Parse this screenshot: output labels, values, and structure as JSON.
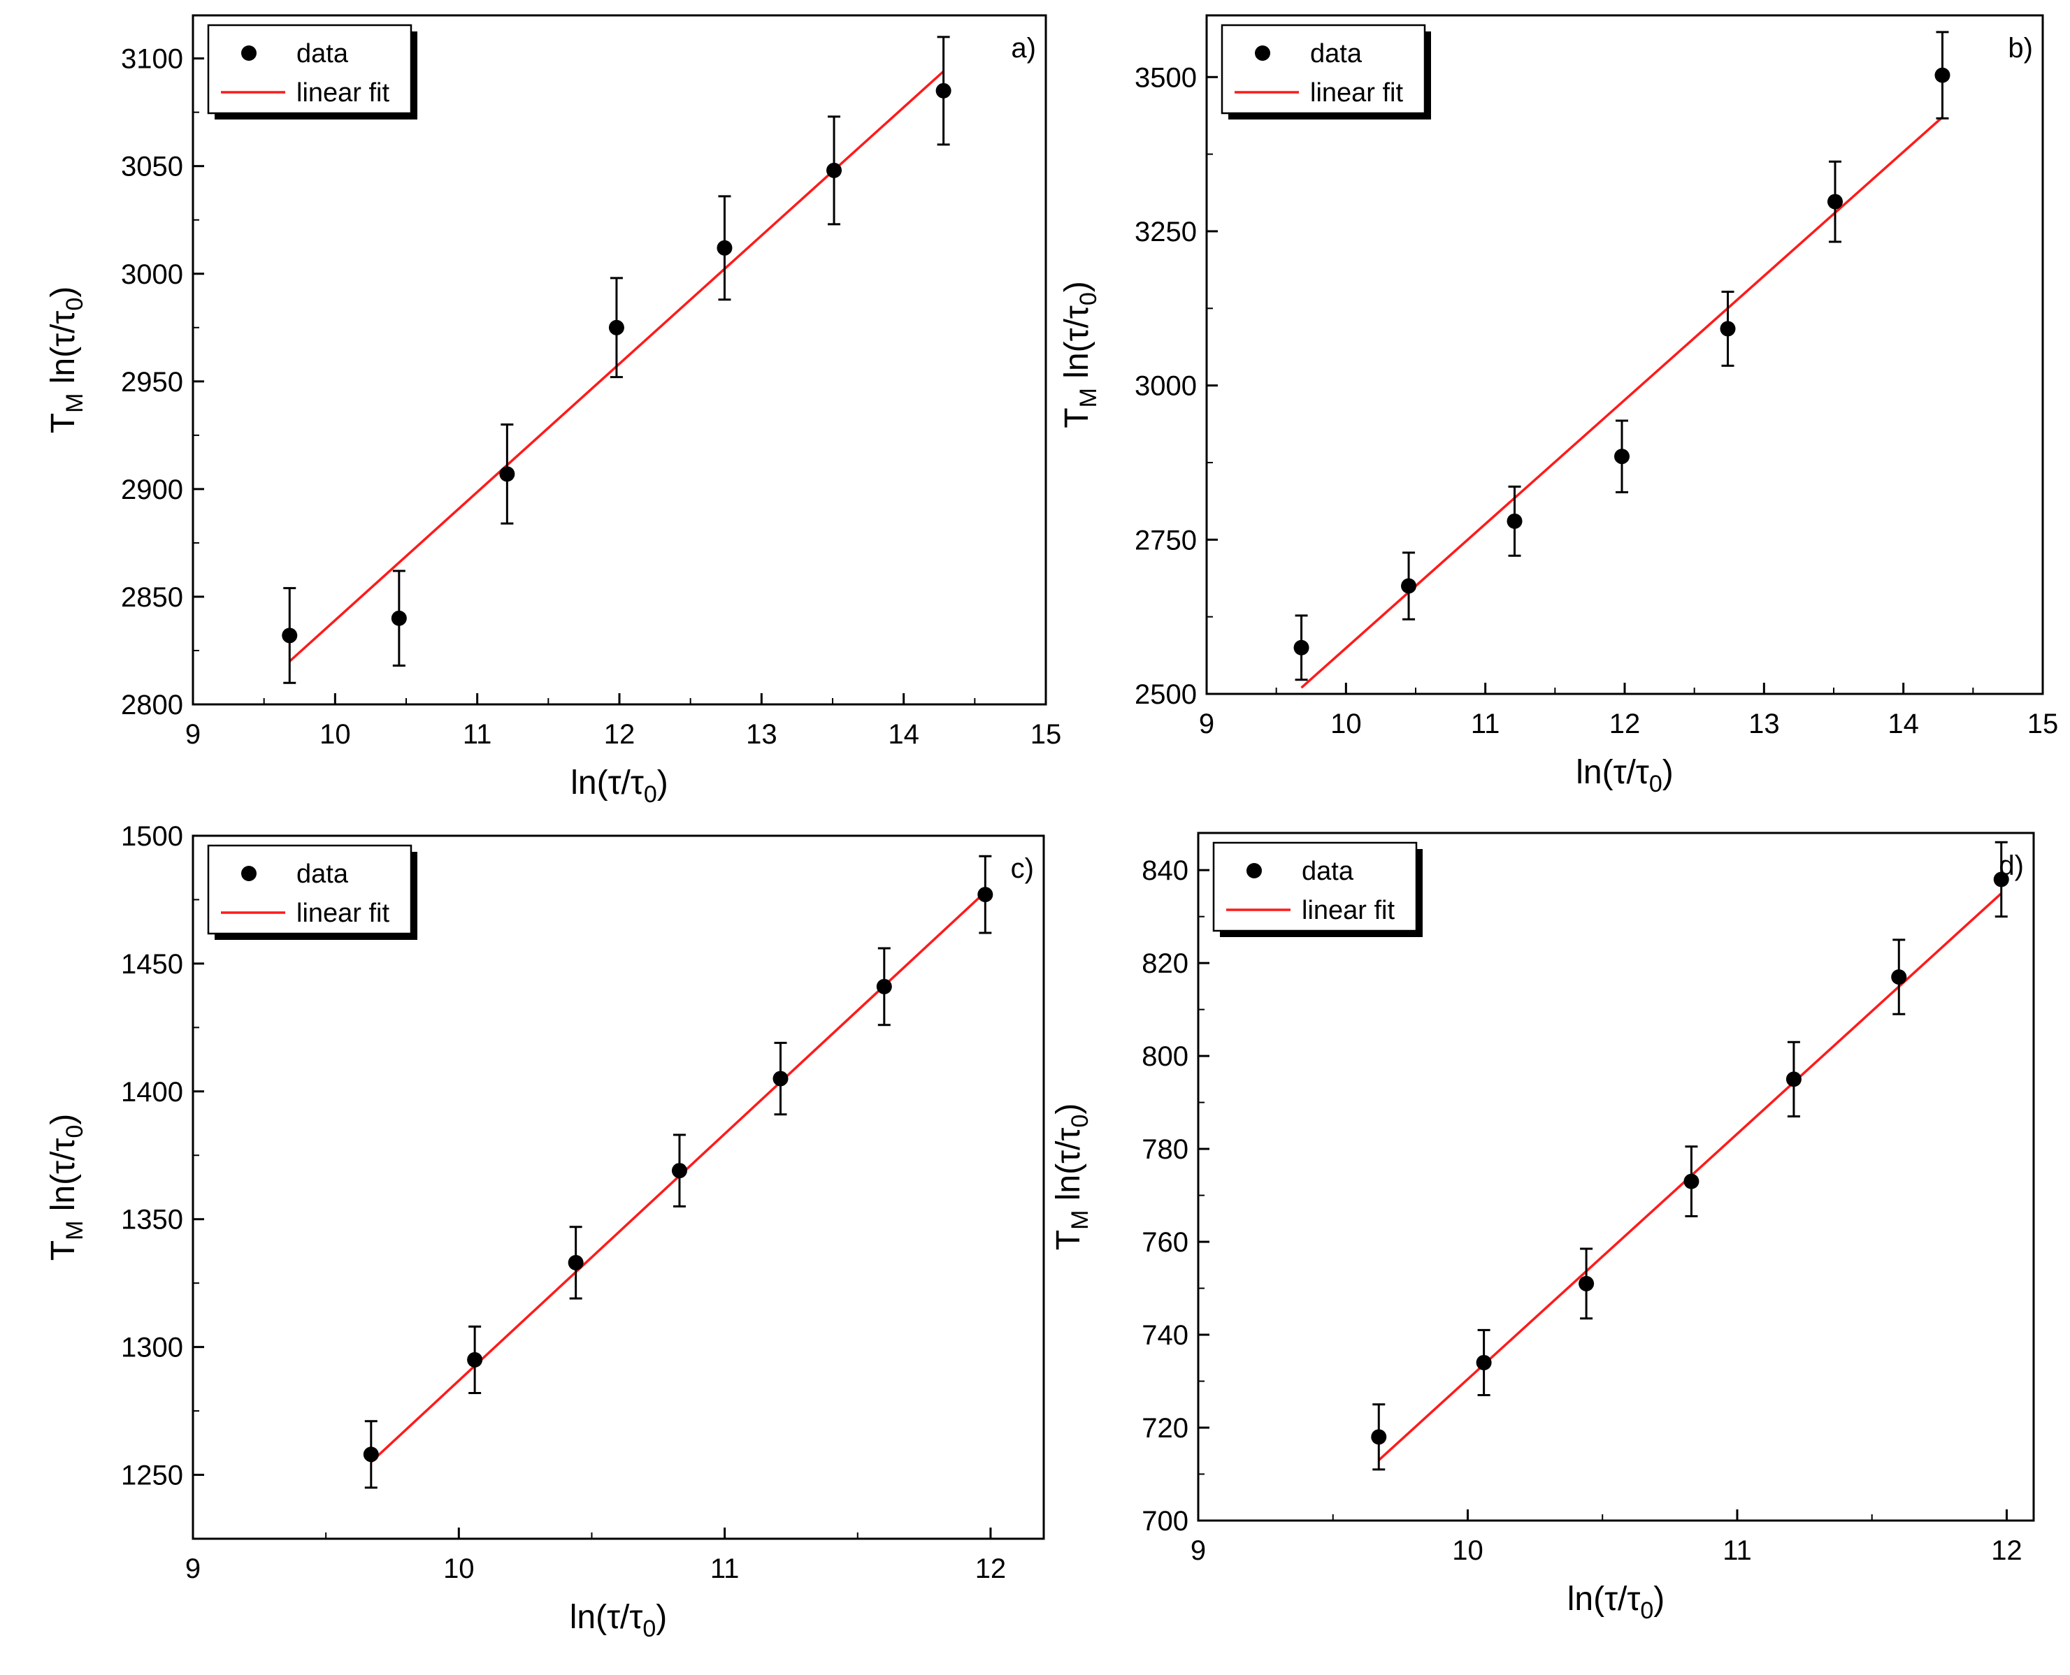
{
  "chart_data": [
    {
      "type": "scatter",
      "panel": "a)",
      "xlabel": "ln(τ/τ0)",
      "ylabel": "TM ln(τ/τ0)",
      "xlim": [
        9,
        15
      ],
      "ylim": [
        2800,
        3120
      ],
      "xticks": [
        9,
        10,
        11,
        12,
        13,
        14,
        15
      ],
      "yticks": [
        2800,
        2850,
        2900,
        2950,
        3000,
        3050,
        3100
      ],
      "legend": {
        "placement": "top-left",
        "entries": [
          "data",
          "linear fit"
        ]
      },
      "series": [
        {
          "name": "data",
          "x": [
            9.68,
            10.45,
            11.21,
            11.98,
            12.74,
            13.51,
            14.28
          ],
          "y": [
            2832,
            2840,
            2907,
            2975,
            3012,
            3048,
            3085
          ],
          "err": [
            22,
            22,
            23,
            23,
            24,
            25,
            25
          ]
        },
        {
          "name": "linear fit",
          "x": [
            9.68,
            14.28
          ],
          "y": [
            2820,
            3094
          ]
        }
      ]
    },
    {
      "type": "scatter",
      "panel": "b)",
      "xlabel": "ln(τ/τ0)",
      "ylabel": "TM ln(τ/τ0)",
      "xlim": [
        9,
        15
      ],
      "ylim": [
        2500,
        3600
      ],
      "xticks": [
        9,
        10,
        11,
        12,
        13,
        14,
        15
      ],
      "yticks": [
        2500,
        2750,
        3000,
        3250,
        3500
      ],
      "legend": {
        "placement": "top-left",
        "entries": [
          "data",
          "linear fit"
        ]
      },
      "series": [
        {
          "name": "data",
          "x": [
            9.68,
            10.45,
            11.21,
            11.98,
            12.74,
            13.51,
            14.28
          ],
          "y": [
            2575,
            2675,
            2780,
            2885,
            3092,
            3298,
            3503
          ],
          "err": [
            52,
            54,
            56,
            58,
            60,
            65,
            70
          ]
        },
        {
          "name": "linear fit",
          "x": [
            9.68,
            14.28
          ],
          "y": [
            2510,
            3435
          ]
        }
      ]
    },
    {
      "type": "scatter",
      "panel": "c)",
      "xlabel": "ln(τ/τ0)",
      "ylabel": "TM ln(τ/τ0)",
      "xlim": [
        9,
        12.2
      ],
      "ylim": [
        1225,
        1500
      ],
      "xticks": [
        9,
        10,
        11,
        12
      ],
      "yticks": [
        1250,
        1300,
        1350,
        1400,
        1450,
        1500
      ],
      "legend": {
        "placement": "top-left",
        "entries": [
          "data",
          "linear fit"
        ]
      },
      "series": [
        {
          "name": "data",
          "x": [
            9.67,
            10.06,
            10.44,
            10.83,
            11.21,
            11.6,
            11.98
          ],
          "y": [
            1258,
            1295,
            1333,
            1369,
            1405,
            1441,
            1477
          ],
          "err": [
            13,
            13,
            14,
            14,
            14,
            15,
            15
          ]
        },
        {
          "name": "linear fit",
          "x": [
            9.67,
            11.98
          ],
          "y": [
            1255,
            1478
          ]
        }
      ]
    },
    {
      "type": "scatter",
      "panel": "d)",
      "xlabel": "ln(τ/τ0)",
      "ylabel": "TM ln(τ/τ0)",
      "xlim": [
        9,
        12.1
      ],
      "ylim": [
        700,
        848
      ],
      "xticks": [
        9,
        10,
        11,
        12
      ],
      "yticks": [
        700,
        720,
        740,
        760,
        780,
        800,
        820,
        840
      ],
      "legend": {
        "placement": "top-left",
        "entries": [
          "data",
          "linear fit"
        ]
      },
      "series": [
        {
          "name": "data",
          "x": [
            9.67,
            10.06,
            10.44,
            10.83,
            11.21,
            11.6,
            11.98
          ],
          "y": [
            718,
            734,
            751,
            773,
            795,
            817,
            838
          ],
          "err": [
            7,
            7,
            7.5,
            7.5,
            8,
            8,
            8
          ]
        },
        {
          "name": "linear fit",
          "x": [
            9.67,
            11.98
          ],
          "y": [
            713,
            835
          ]
        }
      ]
    }
  ],
  "colors": {
    "data": "#000000",
    "fit": "#ff1a1a",
    "axis": "#000000",
    "legend_shadow": "#000000"
  }
}
